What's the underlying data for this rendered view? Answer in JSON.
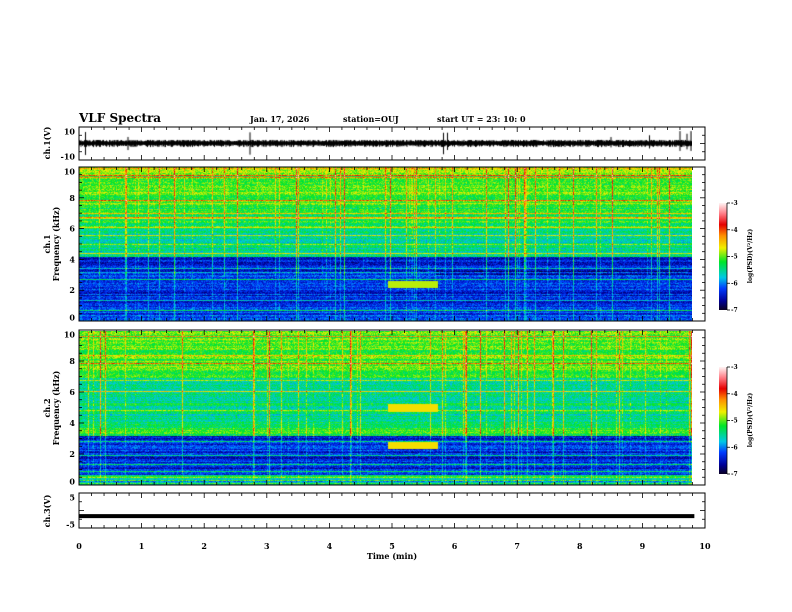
{
  "header": {
    "title": "VLF Spectra",
    "date": "Jan. 17, 2026",
    "station": "station=OUJ",
    "start": "start UT =  23: 10: 0"
  },
  "chart_data": [
    {
      "type": "line",
      "name": "ch1-waveform",
      "ylabel": "ch.1(V)",
      "ylim": [
        -10,
        10
      ],
      "yticks": [
        "10",
        "-10"
      ],
      "xlim": [
        0,
        10
      ],
      "data_end_min": 9.83
    },
    {
      "type": "heatmap",
      "name": "ch1-spectrogram",
      "ylabel": "ch.1\nFrequency (kHz)",
      "ylabel_line1": "ch.1",
      "ylabel_line2": "Frequency (kHz)",
      "ylim": [
        0,
        10
      ],
      "yticks": [
        "0",
        "2",
        "4",
        "6",
        "8",
        "10"
      ],
      "xlim": [
        0,
        10
      ],
      "colorbar": {
        "label": "log(PSD)(V²/Hz)",
        "range": [
          -7,
          -3
        ],
        "ticks": [
          "-3",
          "-4",
          "-5",
          "-6",
          "-7"
        ]
      }
    },
    {
      "type": "heatmap",
      "name": "ch2-spectrogram",
      "ylabel_line1": "ch.2",
      "ylabel_line2": "Frequency (kHz)",
      "ylim": [
        0,
        10
      ],
      "yticks": [
        "0",
        "2",
        "4",
        "6",
        "8",
        "10"
      ],
      "xlim": [
        0,
        10
      ],
      "colorbar": {
        "label": "log(PSD)(V²/Hz)",
        "range": [
          -7,
          -3
        ],
        "ticks": [
          "-3",
          "-4",
          "-5",
          "-6",
          "-7"
        ]
      }
    },
    {
      "type": "line",
      "name": "ch3-waveform",
      "ylabel": "ch.3(V)",
      "ylim": [
        -5,
        5
      ],
      "yticks": [
        "5",
        "-5"
      ],
      "xlim": [
        0,
        10
      ],
      "value": -1.6,
      "xlabel": "Time (min)",
      "xticks": [
        "0",
        "1",
        "2",
        "3",
        "4",
        "5",
        "6",
        "7",
        "8",
        "9",
        "10"
      ]
    }
  ],
  "colors": {
    "axis": "#000000",
    "trace": "#000000"
  }
}
